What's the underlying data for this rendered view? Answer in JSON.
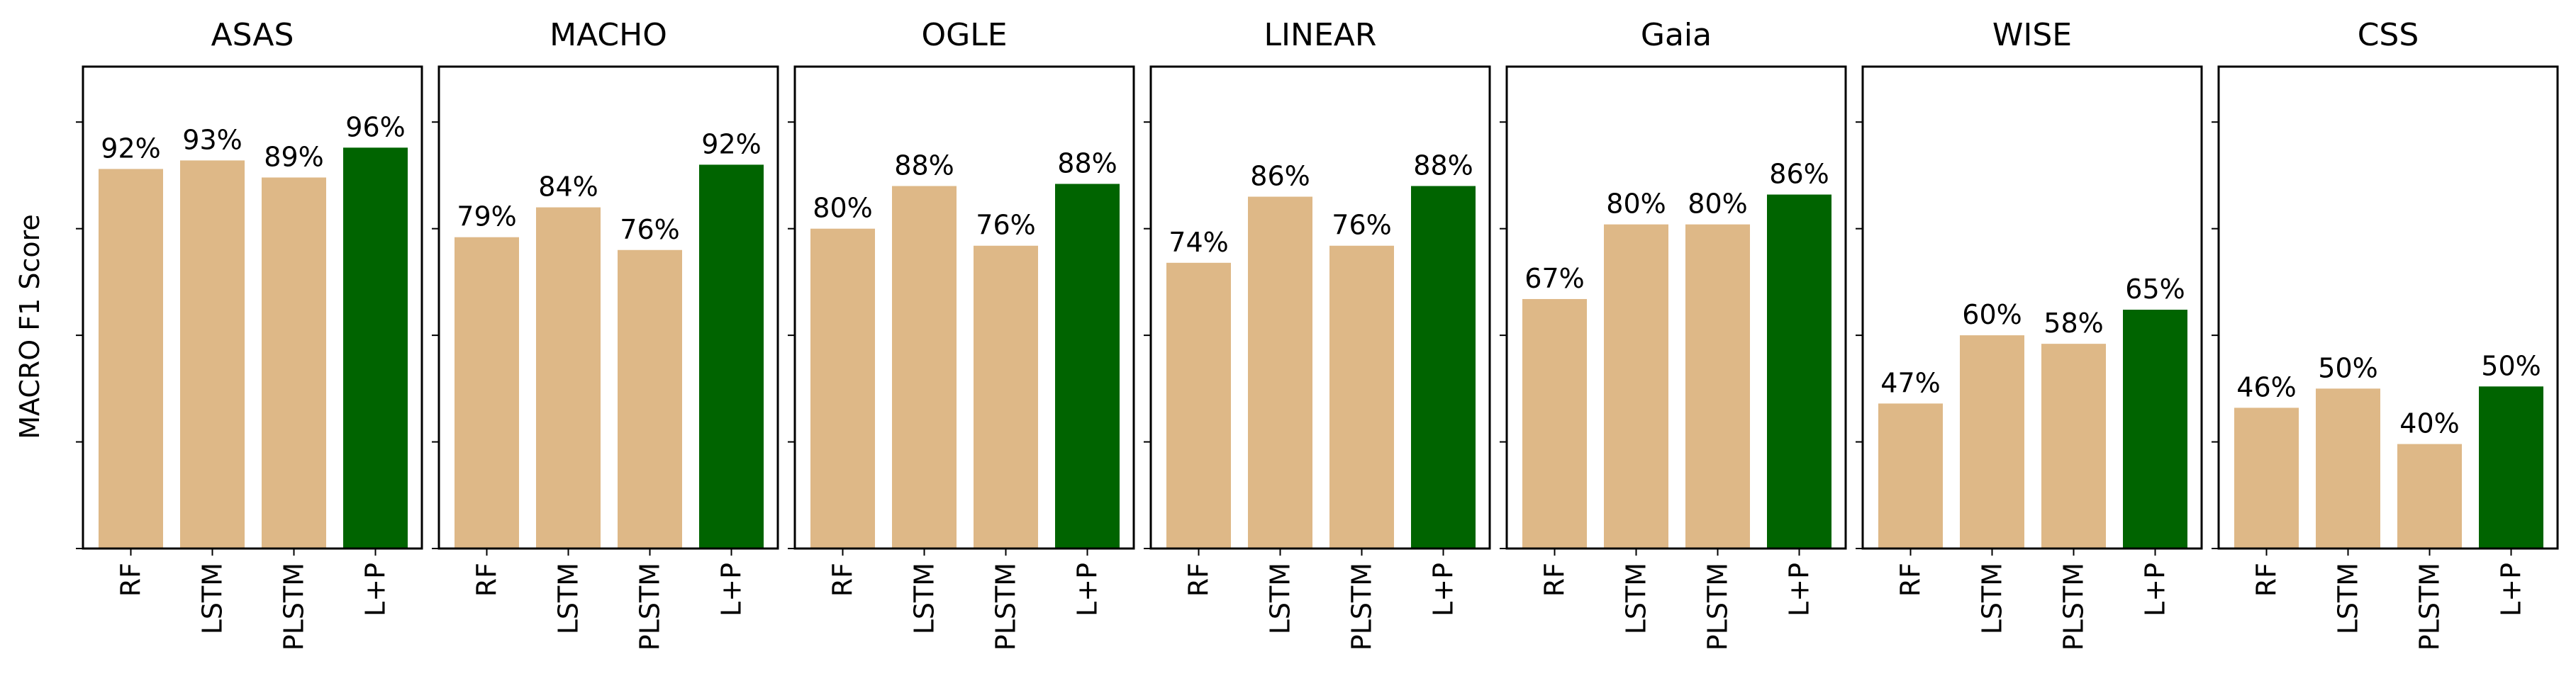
{
  "ylabel": "MACRO F1 Score",
  "colors": {
    "baseline": "#DEB887",
    "highlight": "#006400",
    "frame": "#000000"
  },
  "chart_data": {
    "type": "bar",
    "categories": [
      "RF",
      "LSTM",
      "PLSTM",
      "L+P"
    ],
    "ylim": [
      0,
      1.13
    ],
    "grid": false,
    "ylabel": "MACRO F1 Score",
    "panels": [
      {
        "title": "ASAS",
        "values": [
          0.89,
          0.91,
          0.87,
          0.94
        ],
        "labels": [
          "92%",
          "93%",
          "89%",
          "96%"
        ]
      },
      {
        "title": "MACHO",
        "values": [
          0.73,
          0.8,
          0.7,
          0.9
        ],
        "labels": [
          "79%",
          "84%",
          "76%",
          "92%"
        ]
      },
      {
        "title": "OGLE",
        "values": [
          0.75,
          0.85,
          0.71,
          0.855
        ],
        "labels": [
          "80%",
          "88%",
          "76%",
          "88%"
        ]
      },
      {
        "title": "LINEAR",
        "values": [
          0.67,
          0.825,
          0.71,
          0.85
        ],
        "labels": [
          "74%",
          "86%",
          "76%",
          "88%"
        ]
      },
      {
        "title": "Gaia",
        "values": [
          0.585,
          0.76,
          0.76,
          0.83
        ],
        "labels": [
          "67%",
          "80%",
          "80%",
          "86%"
        ]
      },
      {
        "title": "WISE",
        "values": [
          0.34,
          0.5,
          0.48,
          0.56
        ],
        "labels": [
          "47%",
          "60%",
          "58%",
          "65%"
        ]
      },
      {
        "title": "CSS",
        "values": [
          0.33,
          0.375,
          0.245,
          0.38
        ],
        "labels": [
          "46%",
          "50%",
          "40%",
          "50%"
        ]
      }
    ]
  }
}
